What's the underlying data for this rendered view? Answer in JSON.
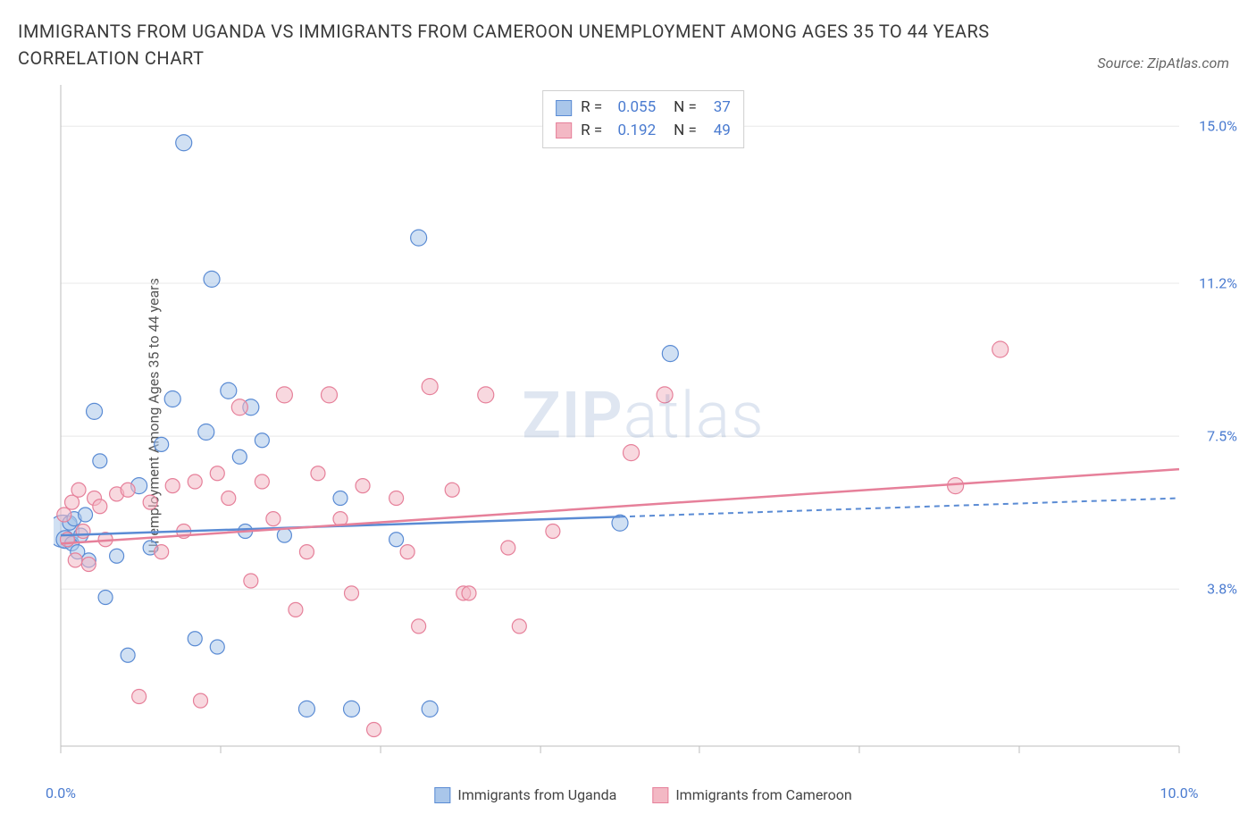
{
  "title": "IMMIGRANTS FROM UGANDA VS IMMIGRANTS FROM CAMEROON UNEMPLOYMENT AMONG AGES 35 TO 44 YEARS CORRELATION CHART",
  "source": "Source: ZipAtlas.com",
  "y_axis_label": "Unemployment Among Ages 35 to 44 years",
  "watermark_bold": "ZIP",
  "watermark_light": "atlas",
  "chart": {
    "type": "scatter",
    "xlim": [
      0,
      10
    ],
    "ylim": [
      0,
      16
    ],
    "x_ticks": [
      0,
      1.43,
      2.86,
      4.29,
      5.71,
      7.14,
      8.57,
      10
    ],
    "x_tick_labels": {
      "0": "0.0%",
      "10": "10.0%"
    },
    "y_ticks": [
      3.8,
      7.5,
      11.2,
      15.0
    ],
    "y_tick_labels": [
      "3.8%",
      "7.5%",
      "11.2%",
      "15.0%"
    ],
    "grid_color": "#e8e8e8",
    "axis_color": "#bdbdbd",
    "background_color": "#ffffff",
    "series": [
      {
        "name": "Immigrants from Uganda",
        "fill": "#a9c6ea",
        "stroke": "#5a8bd4",
        "fill_opacity": 0.55,
        "r_stat": "0.055",
        "n_stat": "37",
        "trend": {
          "x1": 0,
          "y1": 5.1,
          "x2": 5.0,
          "y2": 5.55,
          "x2_ext": 10,
          "y2_ext": 6.0,
          "dash_from": 5.0
        },
        "points": [
          [
            0.02,
            5.2,
            18
          ],
          [
            0.04,
            5.0,
            10
          ],
          [
            0.08,
            5.4,
            8
          ],
          [
            0.1,
            4.9,
            8
          ],
          [
            0.12,
            5.5,
            8
          ],
          [
            0.15,
            4.7,
            8
          ],
          [
            0.18,
            5.1,
            8
          ],
          [
            0.22,
            5.6,
            8
          ],
          [
            0.25,
            4.5,
            8
          ],
          [
            0.3,
            8.1,
            9
          ],
          [
            0.35,
            6.9,
            8
          ],
          [
            0.4,
            3.6,
            8
          ],
          [
            0.5,
            4.6,
            8
          ],
          [
            0.6,
            2.2,
            8
          ],
          [
            0.7,
            6.3,
            9
          ],
          [
            0.8,
            4.8,
            8
          ],
          [
            0.9,
            7.3,
            8
          ],
          [
            1.0,
            8.4,
            9
          ],
          [
            1.1,
            14.6,
            9
          ],
          [
            1.2,
            2.6,
            8
          ],
          [
            1.3,
            7.6,
            9
          ],
          [
            1.35,
            11.3,
            9
          ],
          [
            1.5,
            8.6,
            9
          ],
          [
            1.6,
            7.0,
            8
          ],
          [
            1.65,
            5.2,
            8
          ],
          [
            1.7,
            8.2,
            9
          ],
          [
            1.8,
            7.4,
            8
          ],
          [
            1.4,
            2.4,
            8
          ],
          [
            2.0,
            5.1,
            8
          ],
          [
            2.2,
            0.9,
            9
          ],
          [
            2.5,
            6.0,
            8
          ],
          [
            2.6,
            0.9,
            9
          ],
          [
            3.0,
            5.0,
            8
          ],
          [
            3.2,
            12.3,
            9
          ],
          [
            3.3,
            0.9,
            9
          ],
          [
            5.0,
            5.4,
            9
          ],
          [
            5.45,
            9.5,
            9
          ]
        ]
      },
      {
        "name": "Immigrants from Cameroon",
        "fill": "#f3b8c4",
        "stroke": "#e6809a",
        "fill_opacity": 0.55,
        "r_stat": "0.192",
        "n_stat": "49",
        "trend": {
          "x1": 0,
          "y1": 4.9,
          "x2": 10,
          "y2": 6.7,
          "x2_ext": 10,
          "y2_ext": 6.7,
          "dash_from": 10
        },
        "points": [
          [
            0.03,
            5.6,
            8
          ],
          [
            0.06,
            5.0,
            8
          ],
          [
            0.1,
            5.9,
            8
          ],
          [
            0.13,
            4.5,
            8
          ],
          [
            0.16,
            6.2,
            8
          ],
          [
            0.2,
            5.2,
            8
          ],
          [
            0.25,
            4.4,
            8
          ],
          [
            0.3,
            6.0,
            8
          ],
          [
            0.35,
            5.8,
            8
          ],
          [
            0.4,
            5.0,
            8
          ],
          [
            0.5,
            6.1,
            8
          ],
          [
            0.6,
            6.2,
            8
          ],
          [
            0.7,
            1.2,
            8
          ],
          [
            0.8,
            5.9,
            8
          ],
          [
            0.9,
            4.7,
            8
          ],
          [
            1.0,
            6.3,
            8
          ],
          [
            1.1,
            5.2,
            8
          ],
          [
            1.2,
            6.4,
            8
          ],
          [
            1.25,
            1.1,
            8
          ],
          [
            1.4,
            6.6,
            8
          ],
          [
            1.5,
            6.0,
            8
          ],
          [
            1.6,
            8.2,
            9
          ],
          [
            1.7,
            4.0,
            8
          ],
          [
            1.8,
            6.4,
            8
          ],
          [
            1.9,
            5.5,
            8
          ],
          [
            2.0,
            8.5,
            9
          ],
          [
            2.1,
            3.3,
            8
          ],
          [
            2.2,
            4.7,
            8
          ],
          [
            2.3,
            6.6,
            8
          ],
          [
            2.4,
            8.5,
            9
          ],
          [
            2.5,
            5.5,
            8
          ],
          [
            2.6,
            3.7,
            8
          ],
          [
            2.7,
            6.3,
            8
          ],
          [
            2.8,
            0.4,
            8
          ],
          [
            3.0,
            6.0,
            8
          ],
          [
            3.1,
            4.7,
            8
          ],
          [
            3.2,
            2.9,
            8
          ],
          [
            3.3,
            8.7,
            9
          ],
          [
            3.5,
            6.2,
            8
          ],
          [
            3.6,
            3.7,
            8
          ],
          [
            3.65,
            3.7,
            8
          ],
          [
            3.8,
            8.5,
            9
          ],
          [
            4.0,
            4.8,
            8
          ],
          [
            4.1,
            2.9,
            8
          ],
          [
            4.4,
            5.2,
            8
          ],
          [
            5.1,
            7.1,
            9
          ],
          [
            5.4,
            8.5,
            9
          ],
          [
            8.0,
            6.3,
            9
          ],
          [
            8.4,
            9.6,
            9
          ]
        ]
      }
    ],
    "bottom_legend": [
      "Immigrants from Uganda",
      "Immigrants from Cameroon"
    ]
  }
}
